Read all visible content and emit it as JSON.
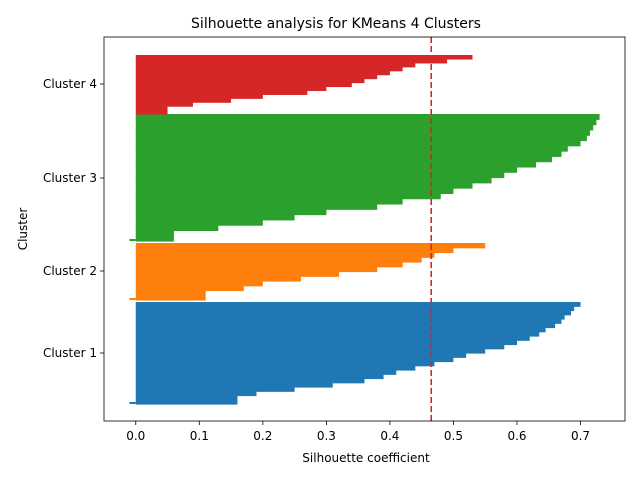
{
  "chart_data": {
    "type": "bar",
    "orientation": "horizontal-profile",
    "title": "Silhouette analysis for KMeans 4 Clusters",
    "xlabel": "Silhouette coefficient",
    "ylabel": "Cluster",
    "xlim": [
      -0.05,
      0.77
    ],
    "xticks": [
      "0.0",
      "0.1",
      "0.2",
      "0.3",
      "0.4",
      "0.5",
      "0.6",
      "0.7"
    ],
    "xtick_values": [
      0.0,
      0.1,
      0.2,
      0.3,
      0.4,
      0.5,
      0.6,
      0.7
    ],
    "average_line": {
      "value": 0.465,
      "color": "#d62728",
      "style": "dashed"
    },
    "clusters": [
      {
        "name": "Cluster 1",
        "color": "#1f77b4",
        "max": 0.7,
        "min": -0.01,
        "profile": [
          0.7,
          0.69,
          0.685,
          0.675,
          0.67,
          0.66,
          0.645,
          0.635,
          0.62,
          0.6,
          0.58,
          0.55,
          0.52,
          0.5,
          0.47,
          0.44,
          0.41,
          0.39,
          0.36,
          0.31,
          0.25,
          0.19,
          0.16,
          0.16
        ]
      },
      {
        "name": "Cluster 2",
        "color": "#ff7f0e",
        "max": 0.55,
        "min": -0.01,
        "profile": [
          0.55,
          0.5,
          0.47,
          0.45,
          0.42,
          0.38,
          0.32,
          0.26,
          0.2,
          0.17,
          0.11,
          0.11
        ]
      },
      {
        "name": "Cluster 3",
        "color": "#2ca02c",
        "max": 0.73,
        "min": -0.01,
        "profile": [
          0.73,
          0.725,
          0.72,
          0.715,
          0.71,
          0.7,
          0.68,
          0.67,
          0.655,
          0.63,
          0.6,
          0.58,
          0.56,
          0.53,
          0.5,
          0.48,
          0.42,
          0.38,
          0.3,
          0.25,
          0.2,
          0.13,
          0.06,
          0.06
        ]
      },
      {
        "name": "Cluster 4",
        "color": "#d62728",
        "max": 0.53,
        "min": 0.0,
        "profile": [
          0.53,
          0.49,
          0.44,
          0.42,
          0.4,
          0.38,
          0.36,
          0.34,
          0.3,
          0.27,
          0.2,
          0.15,
          0.09,
          0.05,
          0.05
        ]
      }
    ]
  }
}
